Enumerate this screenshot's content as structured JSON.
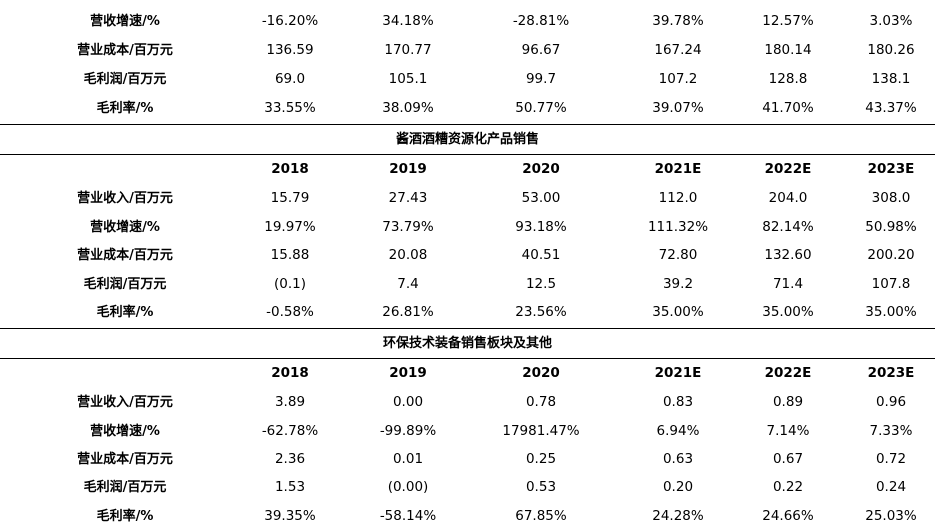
{
  "top_block": {
    "rows": [
      {
        "label": "营收增速/%",
        "values": [
          "-16.20%",
          "34.18%",
          "-28.81%",
          "39.78%",
          "12.57%",
          "3.03%"
        ]
      },
      {
        "label": "营业成本/百万元",
        "values": [
          "136.59",
          "170.77",
          "96.67",
          "167.24",
          "180.14",
          "180.26"
        ]
      },
      {
        "label": "毛利润/百万元",
        "values": [
          "69.0",
          "105.1",
          "99.7",
          "107.2",
          "128.8",
          "138.1"
        ]
      },
      {
        "label": "毛利率/%",
        "values": [
          "33.55%",
          "38.09%",
          "50.77%",
          "39.07%",
          "41.70%",
          "43.37%"
        ]
      }
    ]
  },
  "section_liquor": {
    "title": "酱酒酒糟资源化产品销售",
    "years": [
      "2018",
      "2019",
      "2020",
      "2021E",
      "2022E",
      "2023E"
    ],
    "rows": [
      {
        "label": "营业收入/百万元",
        "values": [
          "15.79",
          "27.43",
          "53.00",
          "112.0",
          "204.0",
          "308.0"
        ]
      },
      {
        "label": "营收增速/%",
        "values": [
          "19.97%",
          "73.79%",
          "93.18%",
          "111.32%",
          "82.14%",
          "50.98%"
        ]
      },
      {
        "label": "营业成本/百万元",
        "values": [
          "15.88",
          "20.08",
          "40.51",
          "72.80",
          "132.60",
          "200.20"
        ]
      },
      {
        "label": "毛利润/百万元",
        "values": [
          "(0.1)",
          "7.4",
          "12.5",
          "39.2",
          "71.4",
          "107.8"
        ]
      },
      {
        "label": "毛利率/%",
        "values": [
          "-0.58%",
          "26.81%",
          "23.56%",
          "35.00%",
          "35.00%",
          "35.00%"
        ]
      }
    ]
  },
  "section_env": {
    "title": "环保技术装备销售板块及其他",
    "years": [
      "2018",
      "2019",
      "2020",
      "2021E",
      "2022E",
      "2023E"
    ],
    "rows": [
      {
        "label": "营业收入/百万元",
        "values": [
          "3.89",
          "0.00",
          "0.78",
          "0.83",
          "0.89",
          "0.96"
        ]
      },
      {
        "label": "营收增速/%",
        "values": [
          "-62.78%",
          "-99.89%",
          "17981.47%",
          "6.94%",
          "7.14%",
          "7.33%"
        ]
      },
      {
        "label": "营业成本/百万元",
        "values": [
          "2.36",
          "0.01",
          "0.25",
          "0.63",
          "0.67",
          "0.72"
        ]
      },
      {
        "label": "毛利润/百万元",
        "values": [
          "1.53",
          "(0.00)",
          "0.53",
          "0.20",
          "0.22",
          "0.24"
        ]
      },
      {
        "label": "毛利率/%",
        "values": [
          "39.35%",
          "-58.14%",
          "67.85%",
          "24.28%",
          "24.66%",
          "25.03%"
        ]
      }
    ]
  }
}
